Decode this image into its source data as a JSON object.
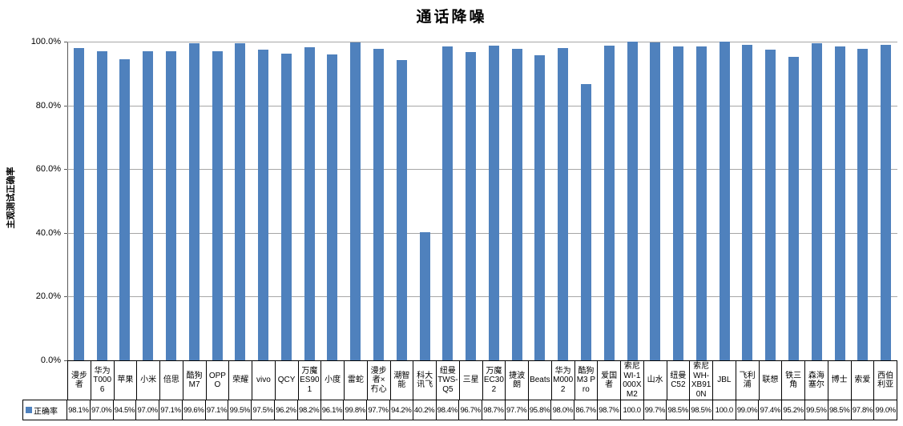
{
  "chart_data": {
    "type": "bar",
    "title": "通话降噪",
    "ylabel": "主观测试正确率",
    "xlabel": "",
    "legend_label": "正确率",
    "legend_position": "bottom-left-table-key",
    "grid": true,
    "ylim": [
      0,
      100
    ],
    "bar_color": "#4F81BD",
    "gridline_color": "#A6A6A6",
    "y_ticks": [
      {
        "label": "100.0%",
        "value": 100
      },
      {
        "label": "80.0%",
        "value": 80
      },
      {
        "label": "60.0%",
        "value": 60
      },
      {
        "label": "40.0%",
        "value": 40
      },
      {
        "label": "20.0%",
        "value": 20
      },
      {
        "label": "0.0%",
        "value": 0
      }
    ],
    "categories": [
      "漫步者",
      "华为T0006",
      "苹果",
      "小米",
      "倍思",
      "酷狗M7",
      "OPPO",
      "荣耀",
      "vivo",
      "QCY",
      "万魔ES901",
      "小度",
      "雷蛇",
      "漫步者×冇心",
      "潮智能",
      "科大讯飞",
      "纽曼TWS-Q5",
      "三星",
      "万魔EC302",
      "捷波朗",
      "Beats",
      "华为M0002",
      "酷狗M3 Pro",
      "爱国者",
      "索尼WI-1000XM2",
      "山水",
      "纽曼C52",
      "索尼WH-XB910N",
      "JBL",
      "飞利浦",
      "联想",
      "铁三角",
      "森海塞尔",
      "博士",
      "索爱",
      "西伯利亚"
    ],
    "values": [
      98.1,
      97.0,
      94.5,
      97.0,
      97.1,
      99.6,
      97.1,
      99.5,
      97.5,
      96.2,
      98.2,
      96.1,
      99.8,
      97.7,
      94.2,
      40.2,
      98.4,
      96.7,
      98.7,
      97.7,
      95.8,
      98.0,
      86.7,
      98.7,
      100.0,
      99.7,
      98.5,
      98.5,
      100.0,
      99.0,
      97.4,
      95.2,
      99.5,
      98.5,
      97.8,
      99.0
    ],
    "value_labels": [
      "98.1%",
      "97.0%",
      "94.5%",
      "97.0%",
      "97.1%",
      "99.6%",
      "97.1%",
      "99.5%",
      "97.5%",
      "96.2%",
      "98.2%",
      "96.1%",
      "99.8%",
      "97.7%",
      "94.2%",
      "40.2%",
      "98.4%",
      "96.7%",
      "98.7%",
      "97.7%",
      "95.8%",
      "98.0%",
      "86.7%",
      "98.7%",
      "100.0",
      "99.7%",
      "98.5%",
      "98.5%",
      "100.0",
      "99.0%",
      "97.4%",
      "95.2%",
      "99.5%",
      "98.5%",
      "97.8%",
      "99.0%"
    ]
  }
}
